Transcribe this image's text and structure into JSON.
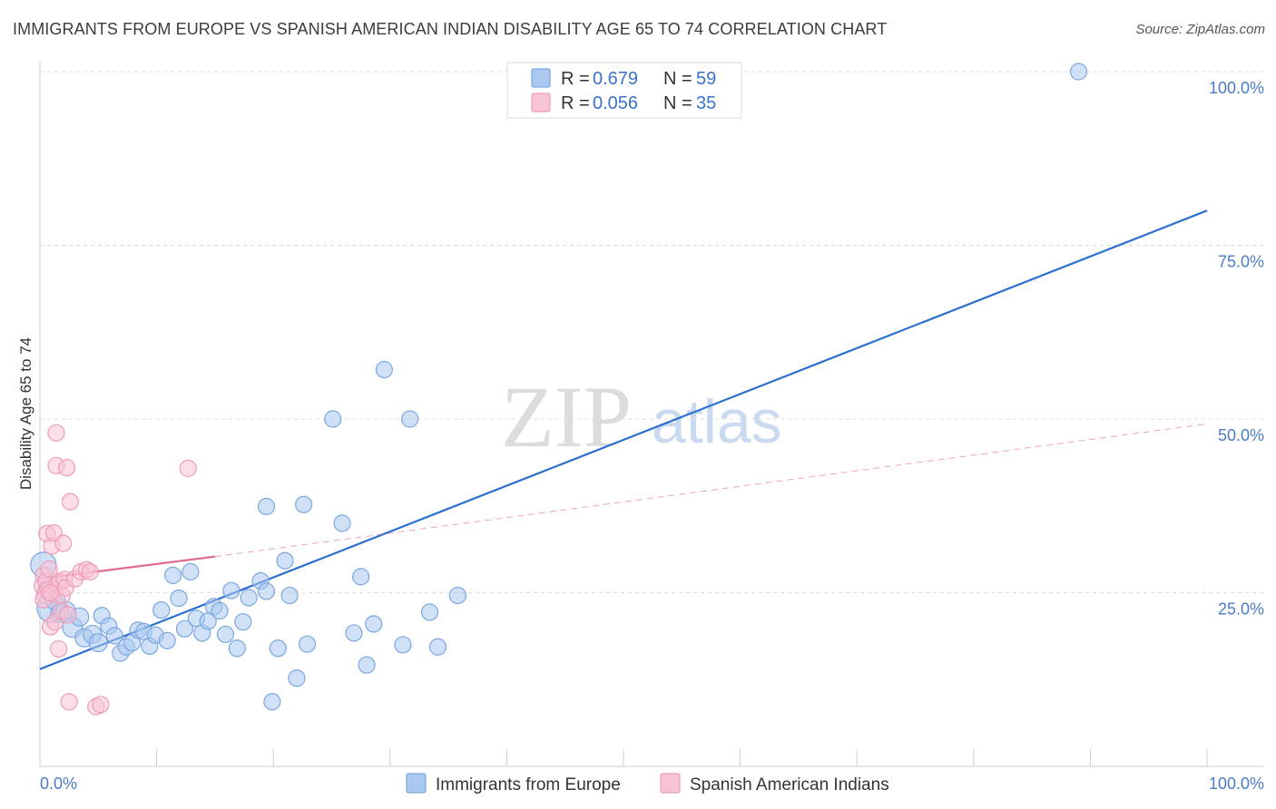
{
  "header": {
    "title": "IMMIGRANTS FROM EUROPE VS SPANISH AMERICAN INDIAN DISABILITY AGE 65 TO 74 CORRELATION CHART",
    "source": "Source: ZipAtlas.com"
  },
  "watermark": {
    "zip": "ZIP",
    "atlas": "atlas"
  },
  "legend": {
    "rows": [
      {
        "r_label": "R =",
        "r_value": "0.679",
        "n_label": "N =",
        "n_value": "59"
      },
      {
        "r_label": "R =",
        "r_value": "0.056",
        "n_label": "N =",
        "n_value": "35"
      }
    ]
  },
  "chart_data": {
    "type": "scatter",
    "title": "IMMIGRANTS FROM EUROPE VS SPANISH AMERICAN INDIAN DISABILITY AGE 65 TO 74 CORRELATION CHART",
    "xlabel": "",
    "ylabel": "Disability Age 65 to 74",
    "xlim": [
      0,
      100
    ],
    "ylim": [
      0,
      102
    ],
    "x_tick_labels": [
      "0.0%",
      "100.0%"
    ],
    "y_ticks": [
      {
        "value": 25,
        "label": "25.0%"
      },
      {
        "value": 50,
        "label": "50.0%"
      },
      {
        "value": 75,
        "label": "75.0%"
      },
      {
        "value": 100,
        "label": "100.0%"
      }
    ],
    "grid": true,
    "legend_position": "top-center",
    "series": [
      {
        "name": "Immigrants from Europe",
        "color": "#7aa7e0",
        "fill": "#aac8f0",
        "trend": {
          "x0": 0,
          "y0": 14.0,
          "x1": 100,
          "y1": 80.0,
          "style": "solid",
          "color": "#2b6fcf"
        },
        "points": [
          {
            "x": 0.3,
            "y": 29.0,
            "s": 14
          },
          {
            "x": 0.8,
            "y": 25.5,
            "s": 12
          },
          {
            "x": 1.0,
            "y": 22.8,
            "s": 16
          },
          {
            "x": 1.3,
            "y": 24.0,
            "s": 11
          },
          {
            "x": 1.7,
            "y": 22.0,
            "s": 10
          },
          {
            "x": 2.2,
            "y": 22.3,
            "s": 11
          },
          {
            "x": 2.8,
            "y": 20.0,
            "s": 11
          },
          {
            "x": 3.4,
            "y": 21.5,
            "s": 10
          },
          {
            "x": 3.8,
            "y": 18.5,
            "s": 10
          },
          {
            "x": 4.5,
            "y": 19.0,
            "s": 10
          },
          {
            "x": 5.0,
            "y": 17.8,
            "s": 10
          },
          {
            "x": 5.3,
            "y": 21.7,
            "s": 9
          },
          {
            "x": 5.9,
            "y": 20.2,
            "s": 9
          },
          {
            "x": 6.4,
            "y": 18.8,
            "s": 9
          },
          {
            "x": 6.9,
            "y": 16.3,
            "s": 9
          },
          {
            "x": 7.4,
            "y": 17.2,
            "s": 9
          },
          {
            "x": 7.9,
            "y": 17.8,
            "s": 9
          },
          {
            "x": 8.4,
            "y": 19.6,
            "s": 9
          },
          {
            "x": 8.9,
            "y": 19.4,
            "s": 9
          },
          {
            "x": 9.4,
            "y": 17.3,
            "s": 9
          },
          {
            "x": 9.9,
            "y": 18.9,
            "s": 9
          },
          {
            "x": 10.4,
            "y": 22.5,
            "s": 9
          },
          {
            "x": 10.9,
            "y": 18.1,
            "s": 9
          },
          {
            "x": 11.4,
            "y": 27.5,
            "s": 9
          },
          {
            "x": 11.9,
            "y": 24.2,
            "s": 9
          },
          {
            "x": 12.4,
            "y": 19.8,
            "s": 9
          },
          {
            "x": 12.9,
            "y": 28.0,
            "s": 9
          },
          {
            "x": 13.4,
            "y": 21.3,
            "s": 9
          },
          {
            "x": 13.9,
            "y": 19.2,
            "s": 9
          },
          {
            "x": 14.4,
            "y": 20.9,
            "s": 9
          },
          {
            "x": 14.9,
            "y": 23.0,
            "s": 9
          },
          {
            "x": 15.4,
            "y": 22.4,
            "s": 9
          },
          {
            "x": 15.9,
            "y": 19.0,
            "s": 9
          },
          {
            "x": 16.4,
            "y": 25.3,
            "s": 9
          },
          {
            "x": 16.9,
            "y": 17.0,
            "s": 9
          },
          {
            "x": 17.4,
            "y": 20.8,
            "s": 9
          },
          {
            "x": 17.9,
            "y": 24.3,
            "s": 9
          },
          {
            "x": 18.9,
            "y": 26.7,
            "s": 9
          },
          {
            "x": 19.4,
            "y": 25.2,
            "s": 9
          },
          {
            "x": 19.4,
            "y": 37.4,
            "s": 9
          },
          {
            "x": 19.9,
            "y": 9.3,
            "s": 9
          },
          {
            "x": 20.4,
            "y": 17.0,
            "s": 9
          },
          {
            "x": 21.0,
            "y": 29.6,
            "s": 9
          },
          {
            "x": 21.4,
            "y": 24.6,
            "s": 9
          },
          {
            "x": 22.0,
            "y": 12.7,
            "s": 9
          },
          {
            "x": 22.6,
            "y": 37.7,
            "s": 9
          },
          {
            "x": 22.9,
            "y": 17.6,
            "s": 9
          },
          {
            "x": 25.1,
            "y": 50.0,
            "s": 9
          },
          {
            "x": 25.9,
            "y": 35.0,
            "s": 9
          },
          {
            "x": 26.9,
            "y": 19.2,
            "s": 9
          },
          {
            "x": 27.5,
            "y": 27.3,
            "s": 9
          },
          {
            "x": 28.0,
            "y": 14.6,
            "s": 9
          },
          {
            "x": 28.6,
            "y": 20.5,
            "s": 9
          },
          {
            "x": 29.5,
            "y": 57.1,
            "s": 9
          },
          {
            "x": 31.1,
            "y": 17.5,
            "s": 9
          },
          {
            "x": 31.7,
            "y": 50.0,
            "s": 9
          },
          {
            "x": 33.4,
            "y": 22.2,
            "s": 9
          },
          {
            "x": 34.1,
            "y": 17.2,
            "s": 9
          },
          {
            "x": 35.8,
            "y": 24.6,
            "s": 9
          },
          {
            "x": 89.0,
            "y": 100.0,
            "s": 9
          }
        ]
      },
      {
        "name": "Spanish American Indians",
        "color": "#ee9cb8",
        "fill": "#f8c3d5",
        "trend": {
          "x0": 0,
          "y0": 27.0,
          "x1": 15,
          "y1": 30.2,
          "style": "solid",
          "color": "#e06893",
          "ext": {
            "x1": 100,
            "y1": 49.3,
            "style": "dashed"
          }
        },
        "points": [
          {
            "x": 0.2,
            "y": 26.0,
            "s": 9
          },
          {
            "x": 0.3,
            "y": 27.5,
            "s": 9
          },
          {
            "x": 0.4,
            "y": 24.7,
            "s": 9
          },
          {
            "x": 0.5,
            "y": 26.6,
            "s": 9
          },
          {
            "x": 0.6,
            "y": 33.5,
            "s": 9
          },
          {
            "x": 0.7,
            "y": 25.4,
            "s": 9
          },
          {
            "x": 0.8,
            "y": 28.4,
            "s": 9
          },
          {
            "x": 0.9,
            "y": 20.1,
            "s": 9
          },
          {
            "x": 1.0,
            "y": 31.7,
            "s": 9
          },
          {
            "x": 1.1,
            "y": 24.8,
            "s": 9
          },
          {
            "x": 1.2,
            "y": 33.6,
            "s": 9
          },
          {
            "x": 1.3,
            "y": 20.8,
            "s": 9
          },
          {
            "x": 1.4,
            "y": 43.3,
            "s": 9
          },
          {
            "x": 1.4,
            "y": 48.0,
            "s": 9
          },
          {
            "x": 1.5,
            "y": 26.2,
            "s": 9
          },
          {
            "x": 1.6,
            "y": 16.9,
            "s": 9
          },
          {
            "x": 1.7,
            "y": 26.6,
            "s": 9
          },
          {
            "x": 1.8,
            "y": 22.4,
            "s": 9
          },
          {
            "x": 1.9,
            "y": 24.6,
            "s": 9
          },
          {
            "x": 2.0,
            "y": 32.1,
            "s": 9
          },
          {
            "x": 2.1,
            "y": 26.9,
            "s": 9
          },
          {
            "x": 2.2,
            "y": 25.7,
            "s": 9
          },
          {
            "x": 2.3,
            "y": 43.0,
            "s": 9
          },
          {
            "x": 2.4,
            "y": 21.8,
            "s": 9
          },
          {
            "x": 2.5,
            "y": 9.3,
            "s": 9
          },
          {
            "x": 2.6,
            "y": 38.1,
            "s": 9
          },
          {
            "x": 3.0,
            "y": 27.0,
            "s": 9
          },
          {
            "x": 3.5,
            "y": 28.0,
            "s": 9
          },
          {
            "x": 4.0,
            "y": 28.3,
            "s": 9
          },
          {
            "x": 4.3,
            "y": 28.0,
            "s": 9
          },
          {
            "x": 4.8,
            "y": 8.6,
            "s": 9
          },
          {
            "x": 5.2,
            "y": 8.9,
            "s": 9
          },
          {
            "x": 12.7,
            "y": 42.9,
            "s": 9
          },
          {
            "x": 0.3,
            "y": 24.0,
            "s": 9
          },
          {
            "x": 0.9,
            "y": 25.0,
            "s": 9
          }
        ]
      }
    ]
  }
}
